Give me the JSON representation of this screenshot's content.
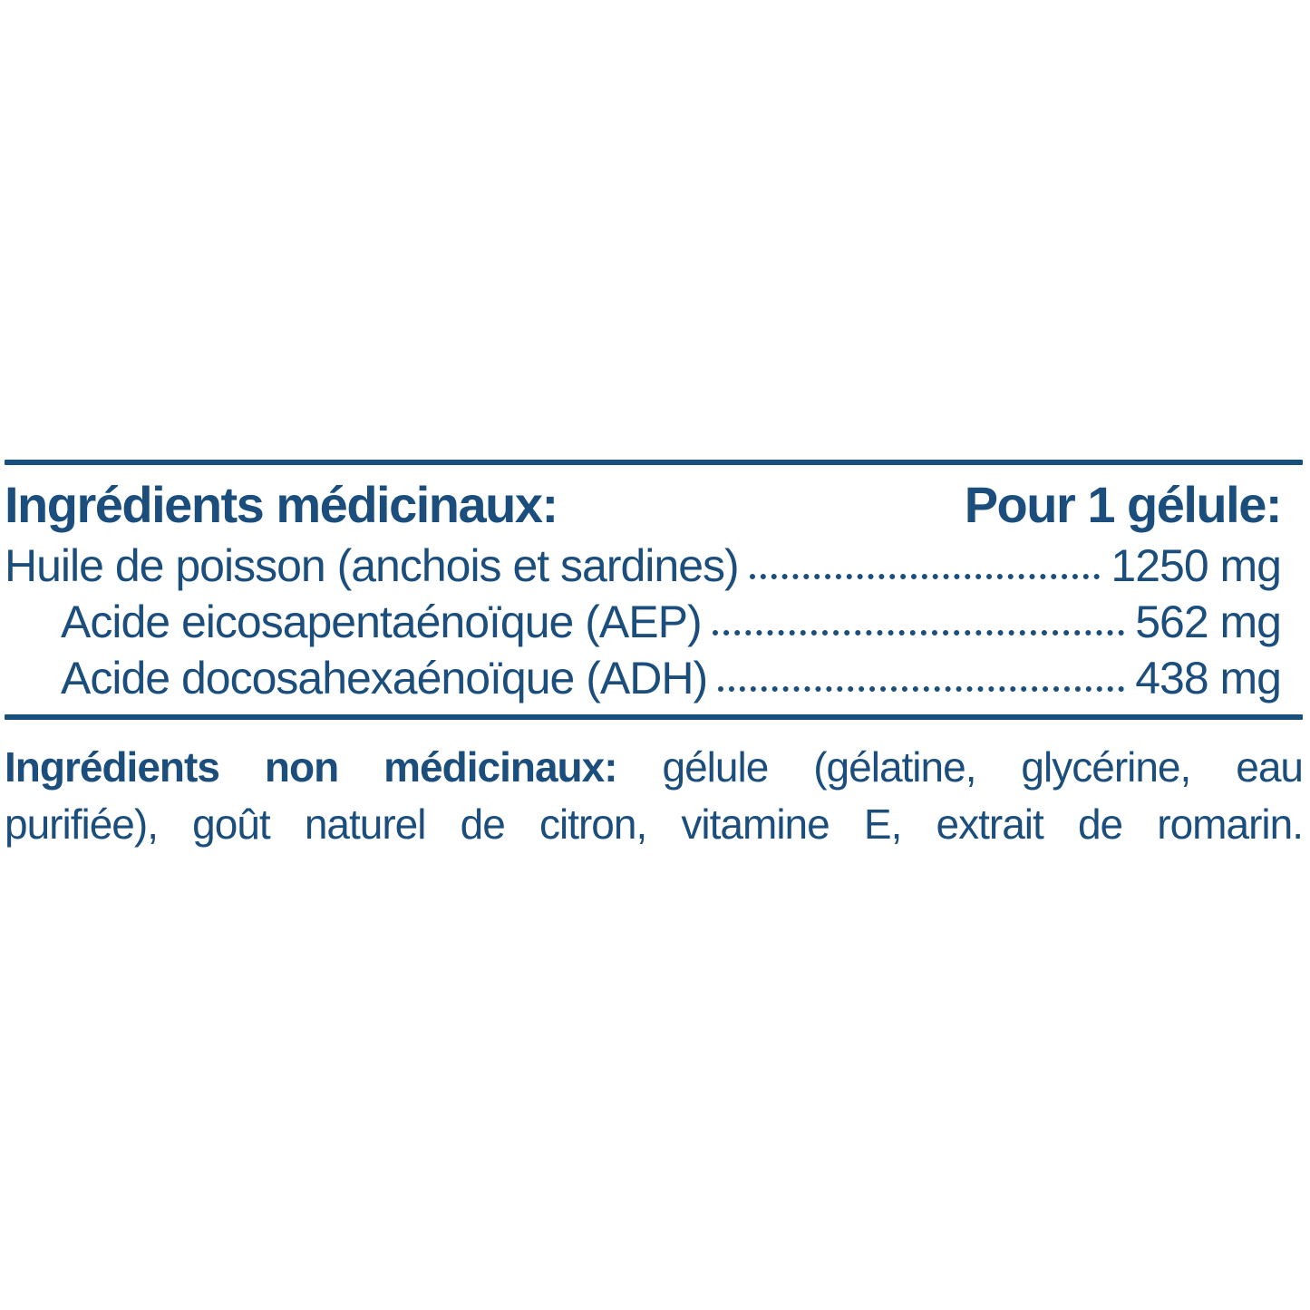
{
  "colors": {
    "background": "#ffffff",
    "text": "#1b4e7d",
    "rule": "#17507e"
  },
  "panel": {
    "header": {
      "left": "Ingrédients médicinaux:",
      "right": "Pour 1 gélule:"
    },
    "rows": [
      {
        "label": "Huile de poisson (anchois et sardines)",
        "value": "1250 mg",
        "indent": false
      },
      {
        "label": "Acide eicosapentaénoïque (AEP)",
        "value": "562 mg",
        "indent": true
      },
      {
        "label": "Acide docosahexaénoïque (ADH)",
        "value": "438 mg",
        "indent": true
      }
    ],
    "footer": {
      "bold_label": "Ingrédients non médicinaux:",
      "line1_rest": "gélule (gélatine, glycérine, eau",
      "line2": "purifiée), goût naturel de citron, vitamine E, extrait de romarin."
    }
  }
}
